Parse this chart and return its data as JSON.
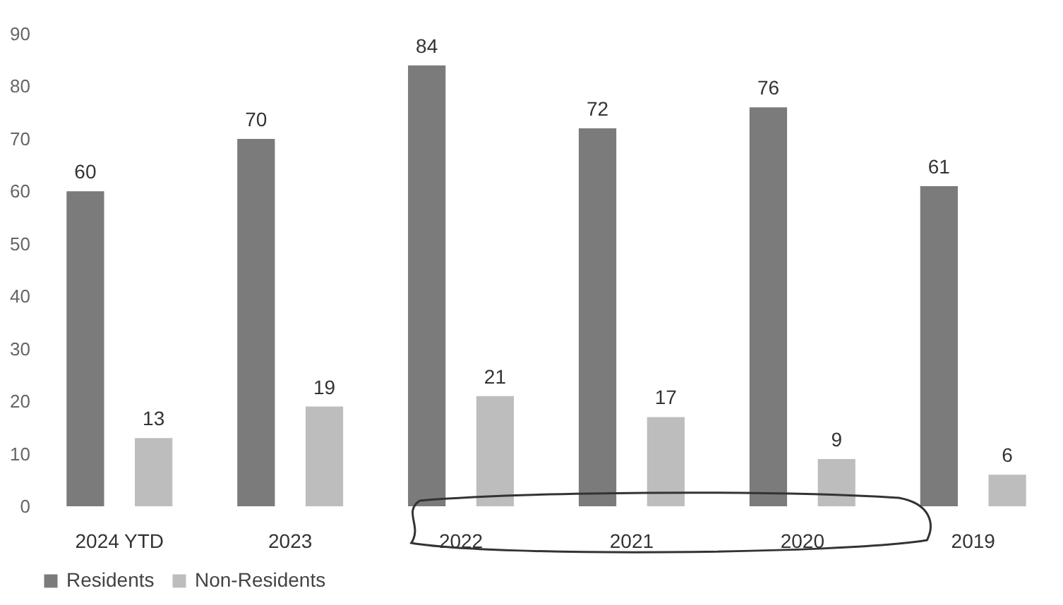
{
  "chart_data": {
    "type": "bar",
    "categories": [
      "2024 YTD",
      "2023",
      "2022",
      "2021",
      "2020",
      "2019"
    ],
    "series": [
      {
        "name": "Residents",
        "color": "#7b7b7b",
        "values": [
          60,
          70,
          84,
          72,
          76,
          61
        ]
      },
      {
        "name": "Non-Residents",
        "color": "#bdbdbd",
        "values": [
          13,
          19,
          21,
          17,
          9,
          6
        ]
      }
    ],
    "ylim": [
      0,
      90
    ],
    "yticks": [
      0,
      10,
      20,
      30,
      40,
      50,
      60,
      70,
      80,
      90
    ],
    "grid": false,
    "legend": "bottom",
    "data_labels": true
  }
}
